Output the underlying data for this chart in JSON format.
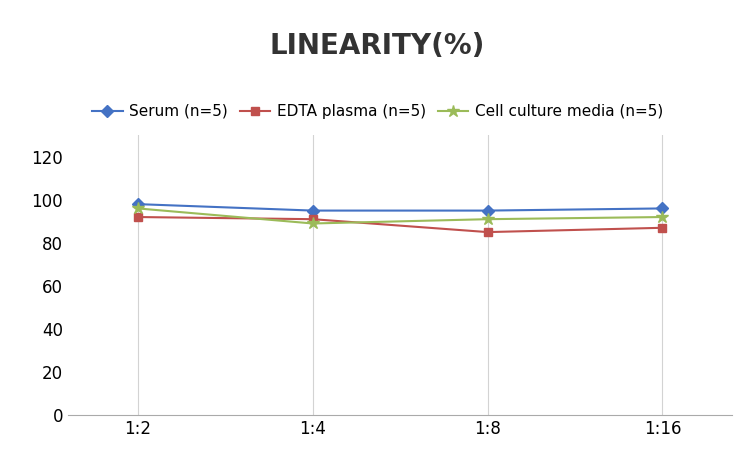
{
  "title": "LINEARITY(%)",
  "x_labels": [
    "1:2",
    "1:4",
    "1:8",
    "1:16"
  ],
  "x_positions": [
    0,
    1,
    2,
    3
  ],
  "series": [
    {
      "label": "Serum (n=5)",
      "values": [
        98,
        95,
        95,
        96
      ],
      "color": "#4472C4",
      "marker": "D",
      "markersize": 6
    },
    {
      "label": "EDTA plasma (n=5)",
      "values": [
        92,
        91,
        85,
        87
      ],
      "color": "#C0504D",
      "marker": "s",
      "markersize": 6
    },
    {
      "label": "Cell culture media (n=5)",
      "values": [
        96,
        89,
        91,
        92
      ],
      "color": "#9BBB59",
      "marker": "*",
      "markersize": 9
    }
  ],
  "ylim": [
    0,
    130
  ],
  "yticks": [
    0,
    20,
    40,
    60,
    80,
    100,
    120
  ],
  "background_color": "#FFFFFF",
  "grid_color": "#D3D3D3",
  "title_fontsize": 20,
  "legend_fontsize": 11,
  "tick_fontsize": 12
}
